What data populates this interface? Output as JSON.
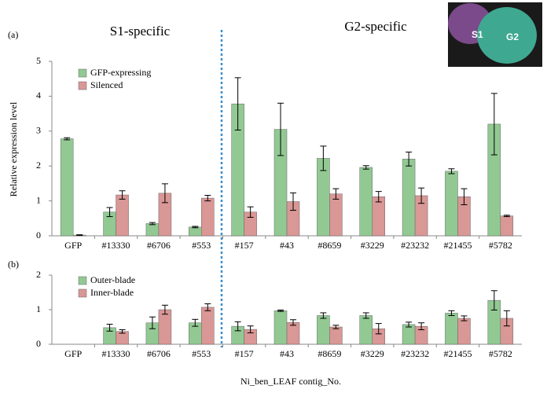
{
  "chart_data": [
    {
      "type": "bar",
      "panel_label": "(a)",
      "ylabel": "Relative expression level",
      "annotations": [
        "S1-specific",
        "G2-specific"
      ],
      "categories": [
        "GFP",
        "#13330",
        "#6706",
        "#553",
        "#157",
        "#43",
        "#8659",
        "#3229",
        "#23232",
        "#21455",
        "#5782"
      ],
      "series": [
        {
          "name": "GFP-expressing",
          "color": "#92c993",
          "values": [
            2.78,
            0.68,
            0.35,
            0.25,
            3.78,
            3.05,
            2.22,
            1.96,
            2.2,
            1.85,
            3.2
          ],
          "errors": [
            0.03,
            0.13,
            0.03,
            0.02,
            0.75,
            0.75,
            0.35,
            0.05,
            0.2,
            0.07,
            0.88
          ]
        },
        {
          "name": "Silenced",
          "color": "#d99795",
          "values": [
            0.02,
            1.17,
            1.22,
            1.08,
            0.68,
            0.98,
            1.2,
            1.12,
            1.15,
            1.12,
            0.57
          ],
          "errors": [
            0.01,
            0.12,
            0.27,
            0.08,
            0.15,
            0.25,
            0.15,
            0.15,
            0.22,
            0.23,
            0.02
          ]
        }
      ],
      "ylim": [
        0,
        5
      ],
      "yticks": [
        0,
        1,
        2,
        3,
        4,
        5
      ],
      "legend": "upper left"
    },
    {
      "type": "bar",
      "panel_label": "(b)",
      "xlabel": "Ni_ben_LEAF contig_No.",
      "categories": [
        "GFP",
        "#13330",
        "#6706",
        "#553",
        "#157",
        "#43",
        "#8659",
        "#3229",
        "#23232",
        "#21455",
        "#5782"
      ],
      "series": [
        {
          "name": "Outer-blade",
          "color": "#92c993",
          "values": [
            null,
            0.48,
            0.62,
            0.62,
            0.52,
            0.97,
            0.83,
            0.83,
            0.57,
            0.9,
            1.27
          ],
          "errors": [
            null,
            0.1,
            0.17,
            0.1,
            0.13,
            0.02,
            0.08,
            0.08,
            0.07,
            0.07,
            0.28
          ]
        },
        {
          "name": "Inner-blade",
          "color": "#d99795",
          "values": [
            null,
            0.37,
            1.0,
            1.07,
            0.43,
            0.63,
            0.5,
            0.45,
            0.52,
            0.75,
            0.75
          ],
          "errors": [
            null,
            0.05,
            0.13,
            0.1,
            0.1,
            0.08,
            0.05,
            0.15,
            0.1,
            0.07,
            0.22
          ]
        }
      ],
      "ylim": [
        0,
        2
      ],
      "yticks": [
        0,
        1,
        2
      ],
      "legend": "upper left"
    }
  ],
  "inset": {
    "labels": [
      "S1",
      "G2"
    ]
  }
}
